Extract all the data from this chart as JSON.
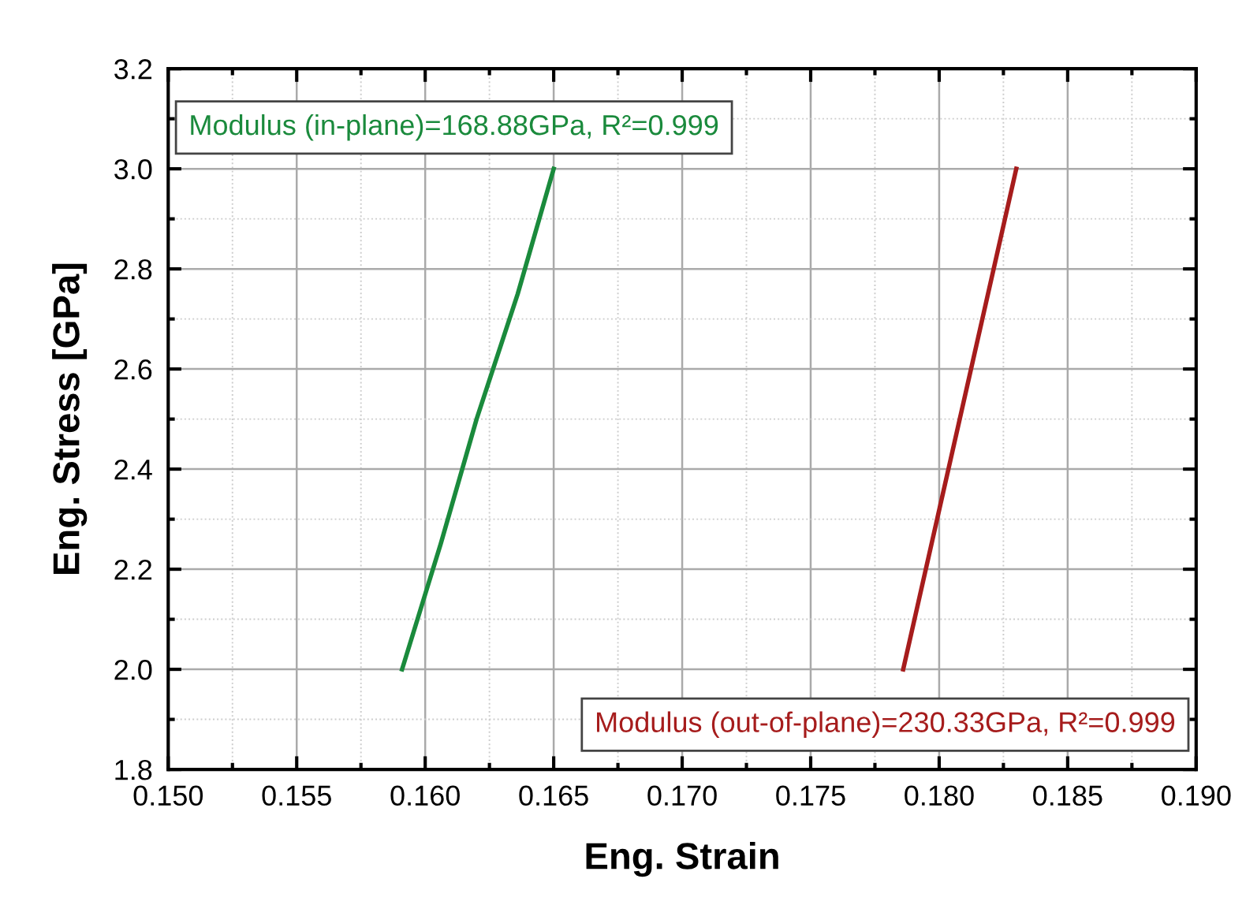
{
  "chart_data": {
    "type": "line",
    "xlabel": "Eng. Strain",
    "ylabel": "Eng. Stress [GPa]",
    "xlim": [
      0.15,
      0.19
    ],
    "xticks": [
      {
        "value": 0.15,
        "label": "0.150"
      },
      {
        "value": 0.155,
        "label": "0.155"
      },
      {
        "value": 0.16,
        "label": "0.160"
      },
      {
        "value": 0.165,
        "label": "0.165"
      },
      {
        "value": 0.17,
        "label": "0.170"
      },
      {
        "value": 0.175,
        "label": "0.175"
      },
      {
        "value": 0.18,
        "label": "0.180"
      },
      {
        "value": 0.185,
        "label": "0.185"
      },
      {
        "value": 0.19,
        "label": "0.190"
      }
    ],
    "ylim": [
      1.8,
      3.2
    ],
    "yticks": [
      1.8,
      {
        "value": 2.0,
        "label": "2.0"
      },
      2.2,
      2.4,
      2.6,
      2.8,
      {
        "value": 3.0,
        "label": "3.0"
      },
      3.2
    ],
    "grid": true,
    "marker": "none",
    "line_style": "solid",
    "series": [
      {
        "color": "#1a8a3c",
        "x": [
          0.1591,
          0.1606,
          0.162,
          0.1636,
          0.165
        ],
        "values": [
          2.0,
          2.25,
          2.5,
          2.75,
          3.0
        ]
      },
      {
        "color": "#a61c1c",
        "x": [
          0.1786,
          0.1797,
          0.1808,
          0.1819,
          0.183
        ],
        "values": [
          2.0,
          2.25,
          2.5,
          2.75,
          3.0
        ]
      }
    ],
    "annotations": [
      "Modulus (in-plane)=168.88GPa, R²=0.999",
      "Modulus (out-of-plane)=230.33GPa, R²=0.999"
    ]
  }
}
